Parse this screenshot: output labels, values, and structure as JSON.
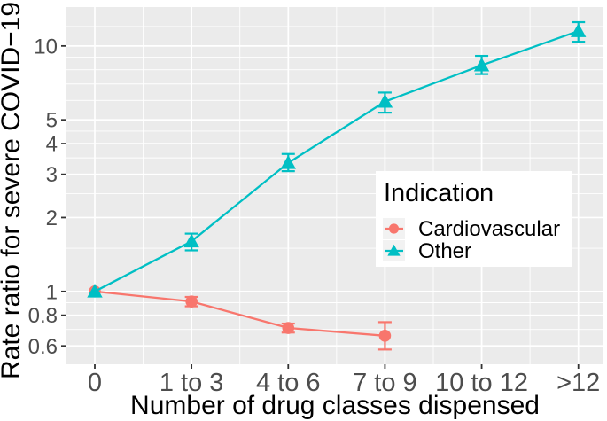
{
  "figure": {
    "x_axis_title": "Number of drug classes dispensed",
    "y_axis_title": "Rate ratio for severe COVID−19"
  },
  "legend": {
    "title": "Indication",
    "items": [
      {
        "label": "Cardiovascular",
        "marker": "circle-icon",
        "color": "#F8766D"
      },
      {
        "label": "Other",
        "marker": "triangle-icon",
        "color": "#00BFC4"
      }
    ]
  },
  "colors": {
    "cardiovascular": "#F8766D",
    "other": "#00BFC4",
    "panel_background": "#EBEBEB",
    "gridline": "#FFFFFF",
    "axis_text": "#4D4D4D",
    "tick_mark": "#333333",
    "legend_key_background": "#F2F2F2"
  },
  "chart_data": {
    "type": "line",
    "title": "",
    "xlabel": "Number of drug classes dispensed",
    "ylabel": "Rate ratio for severe COVID−19",
    "categories": [
      "0",
      "1 to 3",
      "4 to 6",
      "7 to 9",
      "10 to 12",
      ">12"
    ],
    "yscale": "log10",
    "ylim": [
      0.505,
      14.4
    ],
    "y_ticks": [
      10,
      5,
      4,
      3,
      2,
      1,
      0.8,
      0.6
    ],
    "y_tick_labels": [
      "10",
      "5",
      "4",
      "3",
      "2",
      "1",
      "0.8",
      "0.6"
    ],
    "y_minor_gridlines": [
      12,
      9,
      8,
      7,
      6,
      4.5,
      3.5,
      2.5,
      1.5,
      0.9,
      0.7
    ],
    "grid": true,
    "legend_position": "inside-right-middle",
    "series": [
      {
        "name": "Cardiovascular",
        "color": "#F8766D",
        "marker": "circle",
        "values": [
          1.0,
          0.91,
          0.71,
          0.66,
          null,
          null
        ],
        "ci_low": [
          1.0,
          0.87,
          0.68,
          0.58,
          null,
          null
        ],
        "ci_high": [
          1.0,
          0.95,
          0.74,
          0.75,
          null,
          null
        ]
      },
      {
        "name": "Other",
        "color": "#00BFC4",
        "marker": "triangle",
        "values": [
          1.0,
          1.6,
          3.34,
          5.93,
          8.34,
          11.5
        ],
        "ci_low": [
          1.0,
          1.47,
          3.09,
          5.35,
          7.68,
          10.4
        ],
        "ci_high": [
          1.0,
          1.72,
          3.63,
          6.46,
          9.11,
          12.5
        ]
      }
    ]
  }
}
